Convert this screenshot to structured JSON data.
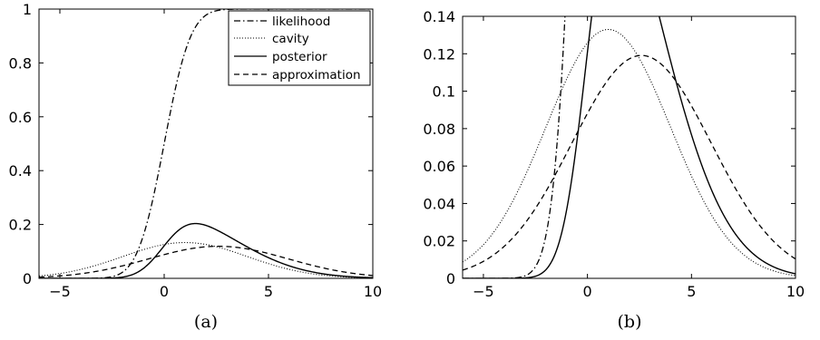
{
  "chart_data": [
    {
      "type": "line",
      "caption": "(a)",
      "xlim": [
        -6,
        10
      ],
      "ylim": [
        0,
        1
      ],
      "xticks": [
        -5,
        0,
        5,
        10
      ],
      "yticks": [
        0,
        0.2,
        0.4,
        0.6,
        0.8,
        1
      ],
      "xtick_labels": [
        "−5",
        "0",
        "5",
        "10"
      ],
      "ytick_labels": [
        "0",
        "0.2",
        "0.4",
        "0.6",
        "0.8",
        "1"
      ],
      "legend": {
        "placement": "top-right",
        "entries": [
          "likelihood",
          "cavity",
          "posterior",
          "approximation"
        ]
      },
      "series": [
        {
          "name": "likelihood",
          "style": "dashdot",
          "function": "probit",
          "mu": 0,
          "sigma": 1
        },
        {
          "name": "cavity",
          "style": "dotted",
          "function": "gaussian",
          "mean": 1,
          "sd": 3
        },
        {
          "name": "posterior",
          "style": "solid",
          "function": "skew-normal",
          "location": 0,
          "scale": 3.3,
          "shape": 3.3
        },
        {
          "name": "approximation",
          "style": "dashed",
          "function": "gaussian",
          "mean": 2.6,
          "sd": 3.35
        }
      ]
    },
    {
      "type": "line",
      "caption": "(b)",
      "xlim": [
        -6,
        10
      ],
      "ylim": [
        0,
        0.14
      ],
      "xticks": [
        -5,
        0,
        5,
        10
      ],
      "yticks": [
        0,
        0.02,
        0.04,
        0.06,
        0.08,
        0.1,
        0.12,
        0.14
      ],
      "xtick_labels": [
        "−5",
        "0",
        "5",
        "10"
      ],
      "ytick_labels": [
        "0",
        "0.02",
        "0.04",
        "0.06",
        "0.08",
        "0.1",
        "0.12",
        "0.14"
      ],
      "series": [
        {
          "name": "likelihood",
          "style": "dashdot",
          "function": "probit",
          "mu": 0,
          "sigma": 1
        },
        {
          "name": "cavity",
          "style": "dotted",
          "function": "gaussian",
          "mean": 1,
          "sd": 3
        },
        {
          "name": "posterior",
          "style": "solid",
          "function": "skew-normal",
          "location": 0,
          "scale": 3.3,
          "shape": 3.3
        },
        {
          "name": "approximation",
          "style": "dashed",
          "function": "gaussian",
          "mean": 2.6,
          "sd": 3.35
        }
      ]
    }
  ]
}
